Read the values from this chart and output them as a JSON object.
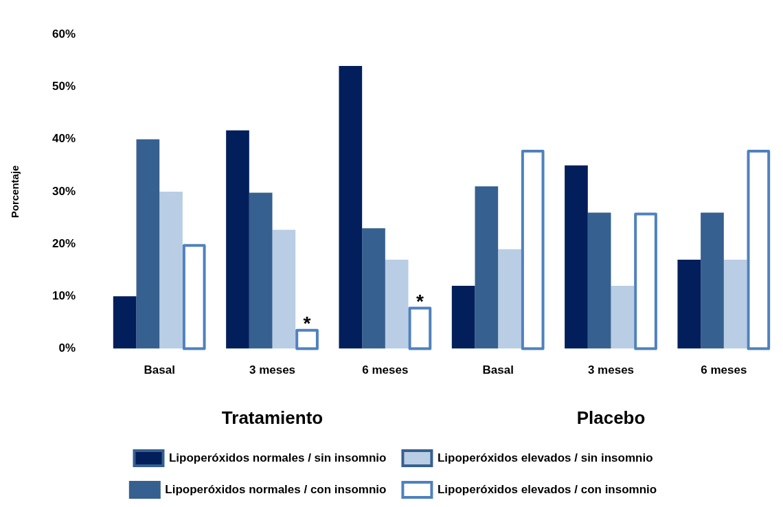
{
  "chart_data": {
    "type": "bar",
    "ylabel": "Porcentaje",
    "categories": [
      "Basal",
      "3 meses",
      "6 meses",
      "Basal",
      "3 meses",
      "6 meses"
    ],
    "series": [
      {
        "name": "Lipoperóxidos normales / sin insomnio",
        "color": "#021f5c",
        "values": [
          10,
          41.7,
          54,
          12,
          35,
          17
        ]
      },
      {
        "name": "Lipoperóxidos normales / con insomnio",
        "color": "#36608f",
        "values": [
          40,
          29.8,
          23,
          31,
          26,
          26
        ]
      },
      {
        "name": "Lipoperóxidos elevados / sin insomnio",
        "color": "#b9cde4",
        "values": [
          30,
          22.7,
          17,
          19,
          12,
          17
        ]
      },
      {
        "name": "Lipoperóxidos elevados / con insomnio",
        "color": "#4f81bd",
        "line_style": "solid",
        "values": [
          20,
          3.8,
          8,
          38,
          26,
          38
        ]
      }
    ],
    "ylim": [
      0,
      60
    ],
    "yticks": [
      {
        "value": 0,
        "label": "0%"
      },
      {
        "value": 10,
        "label": "10%"
      },
      {
        "value": 20,
        "label": "20%"
      },
      {
        "value": 30,
        "label": "30%"
      },
      {
        "value": 40,
        "label": "40%"
      },
      {
        "value": 50,
        "label": "50%"
      },
      {
        "value": 60,
        "label": "60%"
      }
    ],
    "grid": false,
    "legend": "bottom",
    "annotations": [
      "Tratamiento",
      "Placebo",
      {
        "text": "*",
        "x": "3 meses",
        "y": 3.8
      },
      {
        "text": "*",
        "x": "6 meses",
        "y": 8
      }
    ]
  }
}
